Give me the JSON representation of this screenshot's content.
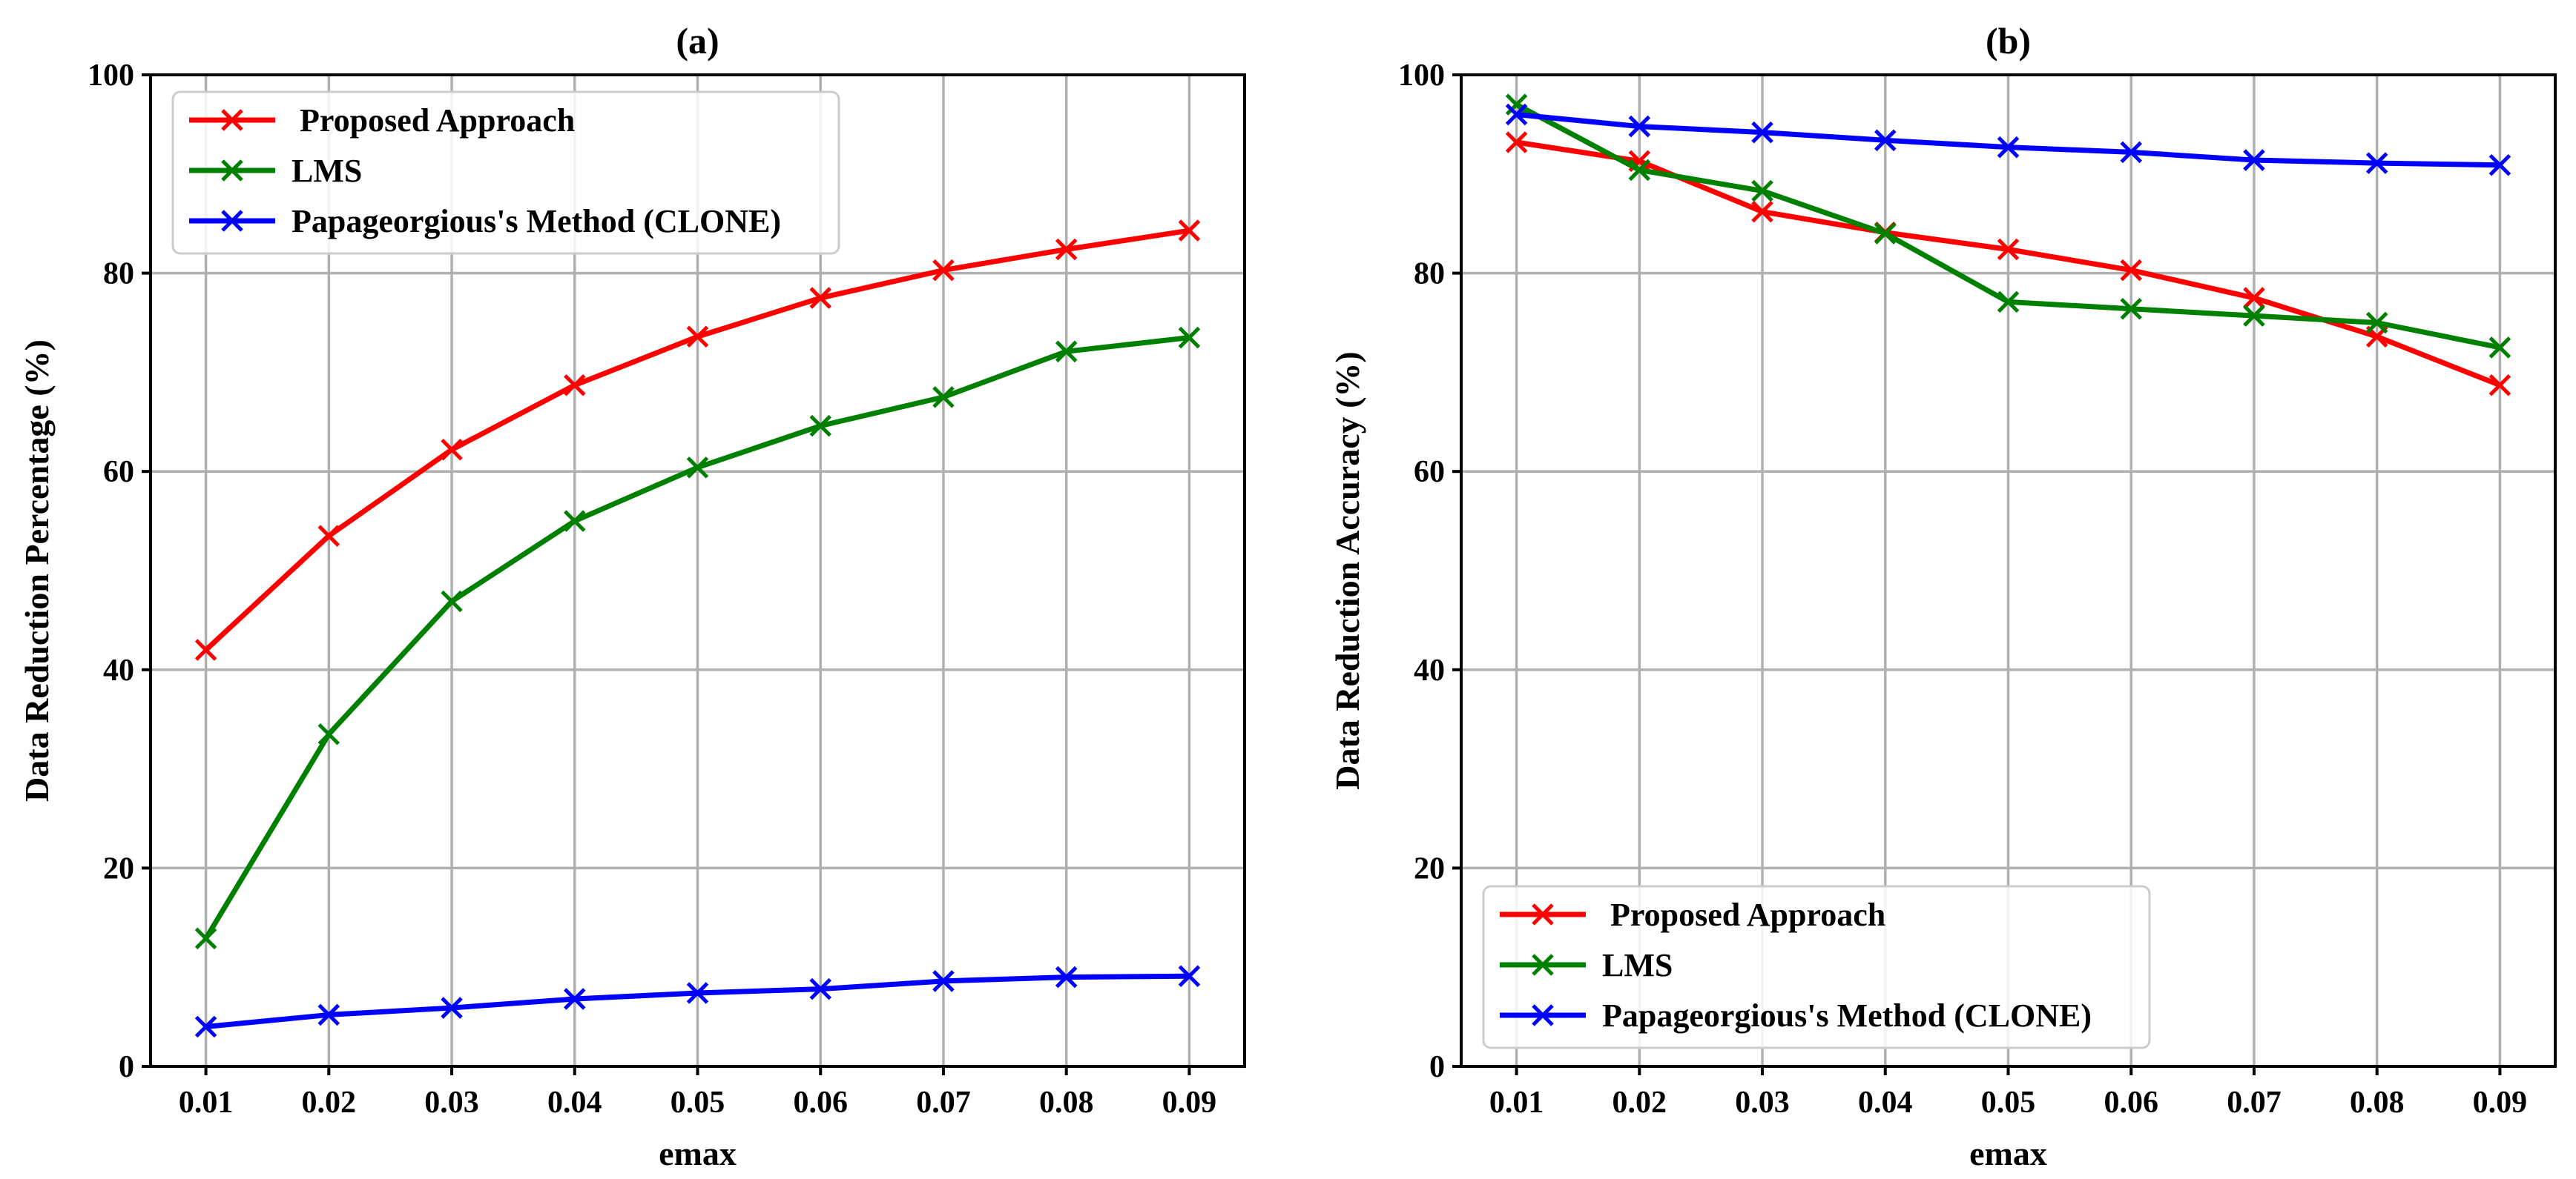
{
  "chart_data": [
    {
      "type": "line",
      "title": "(a)",
      "xlabel": "emax",
      "ylabel": "Data Reduction Percentage (%)",
      "x": [
        0.01,
        0.02,
        0.03,
        0.04,
        0.05,
        0.06,
        0.07,
        0.08,
        0.09
      ],
      "x_tick_labels": [
        "0.01",
        "0.02",
        "0.03",
        "0.04",
        "0.05",
        "0.06",
        "0.07",
        "0.08",
        "0.09"
      ],
      "xlim": [
        0.0055,
        0.0945
      ],
      "ylim": [
        0,
        100
      ],
      "y_ticks": [
        0,
        20,
        40,
        60,
        80,
        100
      ],
      "y_tick_labels": [
        "0",
        "20",
        "40",
        "60",
        "80",
        "100"
      ],
      "grid": true,
      "legend_position": "top-left",
      "series": [
        {
          "name": " Proposed Approach",
          "color": "#ff0000",
          "marker": "x",
          "values": [
            42.0,
            53.5,
            62.2,
            68.7,
            73.6,
            77.5,
            80.3,
            82.4,
            84.3
          ]
        },
        {
          "name": "LMS",
          "color": "#008000",
          "marker": "x",
          "values": [
            12.9,
            33.5,
            46.9,
            55.0,
            60.4,
            64.6,
            67.5,
            72.1,
            73.5
          ]
        },
        {
          "name": "Papageorgious's Method (CLONE)",
          "color": "#0000ff",
          "marker": "x",
          "values": [
            4.0,
            5.2,
            5.9,
            6.8,
            7.4,
            7.8,
            8.6,
            9.0,
            9.1
          ]
        }
      ]
    },
    {
      "type": "line",
      "title": "(b)",
      "xlabel": "emax",
      "ylabel": "Data Reduction Accuracy (%)",
      "x": [
        0.01,
        0.02,
        0.03,
        0.04,
        0.05,
        0.06,
        0.07,
        0.08,
        0.09
      ],
      "x_tick_labels": [
        "0.01",
        "0.02",
        "0.03",
        "0.04",
        "0.05",
        "0.06",
        "0.07",
        "0.08",
        "0.09"
      ],
      "xlim": [
        0.0055,
        0.0945
      ],
      "ylim": [
        0,
        100
      ],
      "y_ticks": [
        0,
        20,
        40,
        60,
        80,
        100
      ],
      "y_tick_labels": [
        "0",
        "20",
        "40",
        "60",
        "80",
        "100"
      ],
      "grid": true,
      "legend_position": "bottom-left",
      "series": [
        {
          "name": " Proposed Approach",
          "color": "#ff0000",
          "marker": "x",
          "values": [
            93.2,
            91.3,
            86.2,
            84.1,
            82.4,
            80.3,
            77.5,
            73.6,
            68.7
          ]
        },
        {
          "name": "LMS",
          "color": "#008000",
          "marker": "x",
          "values": [
            97.0,
            90.4,
            88.3,
            84.0,
            77.1,
            76.4,
            75.7,
            75.0,
            72.5
          ]
        },
        {
          "name": "Papageorgious's Method (CLONE)",
          "color": "#0000ff",
          "marker": "x",
          "values": [
            96.0,
            94.8,
            94.2,
            93.4,
            92.7,
            92.2,
            91.4,
            91.1,
            90.9
          ]
        }
      ]
    }
  ]
}
